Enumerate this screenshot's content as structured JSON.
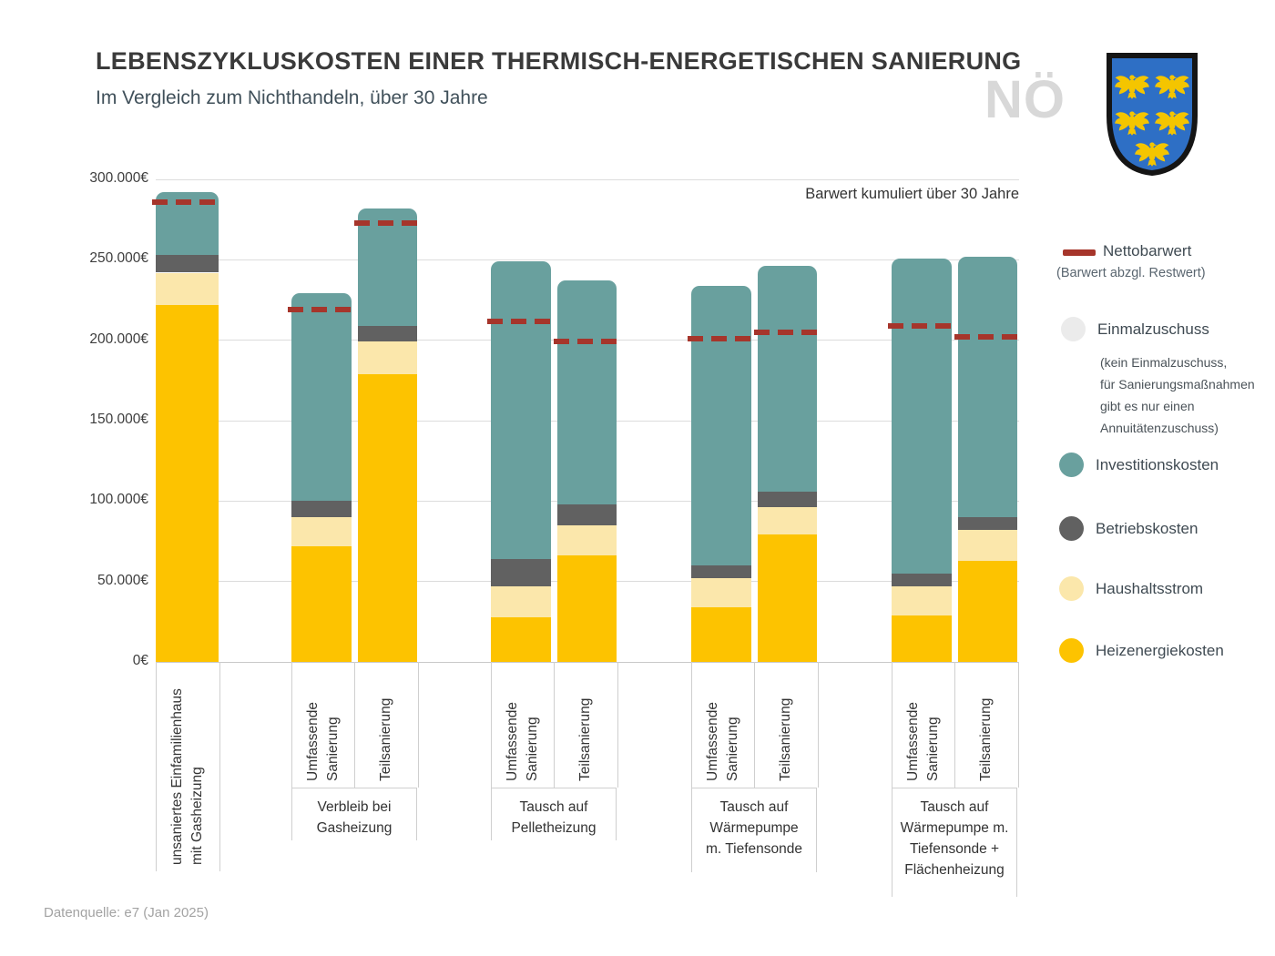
{
  "header": {
    "title": "LEBENSZYKLUSKOSTEN EINER THERMISCH-ENERGETISCHEN SANIERUNG",
    "subtitle": "Im Vergleich zum Nichthandeln, über 30 Jahre",
    "watermark": "NÖ"
  },
  "annotation": "Barwert kumuliert über 30 Jahre",
  "footer": {
    "source": "Datenquelle: e7 (Jan 2025)"
  },
  "colors": {
    "investitionskosten": "#69a09e",
    "betriebskosten": "#616161",
    "haushaltsstrom": "#fbe7ab",
    "heizenergiekosten": "#fdc300",
    "nettobarwert": "#a6352b",
    "einmalzuschuss": "#ebebeb",
    "gridline": "#dcdcdc",
    "shield_blue": "#2e6fc5",
    "eagle_gold": "#f4c500"
  },
  "legend": {
    "nettobarwert": {
      "label": "Nettobarwert",
      "sub": "(Barwert abzgl. Restwert)"
    },
    "einmalzuschuss": {
      "label": "Einmalzuschuss",
      "note": "(kein Einmalzuschuss,\nfür Sanierungsmaßnahmen\ngibt es nur einen\nAnnuitätenzuschuss)"
    },
    "series": [
      {
        "key": "investitionskosten",
        "label": "Investitionskosten"
      },
      {
        "key": "betriebskosten",
        "label": "Betriebskosten"
      },
      {
        "key": "haushaltsstrom",
        "label": "Haushaltsstrom"
      },
      {
        "key": "heizenergiekosten",
        "label": "Heizenergiekosten"
      }
    ]
  },
  "y_axis": {
    "unit": "€",
    "max": 300000,
    "ticks": [
      {
        "value": 0,
        "label": "0€"
      },
      {
        "value": 50000,
        "label": "50.000€"
      },
      {
        "value": 100000,
        "label": "100.000€"
      },
      {
        "value": 150000,
        "label": "150.000€"
      },
      {
        "value": 200000,
        "label": "200.000€"
      },
      {
        "value": 250000,
        "label": "250.000€"
      },
      {
        "value": 300000,
        "label": "300.000€"
      }
    ]
  },
  "chart_data": {
    "type": "bar",
    "subtype": "stacked",
    "unit": "EUR, Barwert kumuliert über 30 Jahre",
    "stack_order": [
      "heizenergiekosten",
      "haushaltsstrom",
      "betriebskosten",
      "investitionskosten"
    ],
    "groups": [
      {
        "group_label": "",
        "bars": [
          {
            "label": "unsaniertes Einfamilienhaus\nmit Gasheizung",
            "values": {
              "heizenergiekosten": 222000,
              "haushaltsstrom": 20000,
              "betriebskosten": 11000,
              "investitionskosten": 39000
            },
            "nettobarwert": 286000
          }
        ]
      },
      {
        "group_label": "Verbleib bei\nGasheizung",
        "bars": [
          {
            "label": "Umfassende\nSanierung",
            "values": {
              "heizenergiekosten": 72000,
              "haushaltsstrom": 18000,
              "betriebskosten": 10000,
              "investitionskosten": 129000
            },
            "nettobarwert": 219000
          },
          {
            "label": "Teilsanierung",
            "values": {
              "heizenergiekosten": 179000,
              "haushaltsstrom": 20000,
              "betriebskosten": 10000,
              "investitionskosten": 73000
            },
            "nettobarwert": 273000
          }
        ]
      },
      {
        "group_label": "Tausch auf\nPelletheizung",
        "bars": [
          {
            "label": "Umfassende\nSanierung",
            "values": {
              "heizenergiekosten": 28000,
              "haushaltsstrom": 19000,
              "betriebskosten": 17000,
              "investitionskosten": 185000
            },
            "nettobarwert": 212000
          },
          {
            "label": "Teilsanierung",
            "values": {
              "heizenergiekosten": 66000,
              "haushaltsstrom": 19000,
              "betriebskosten": 13000,
              "investitionskosten": 139000
            },
            "nettobarwert": 199000
          }
        ]
      },
      {
        "group_label": "Tausch auf\nWärmepumpe\nm. Tiefensonde",
        "bars": [
          {
            "label": "Umfassende\nSanierung",
            "values": {
              "heizenergiekosten": 34000,
              "haushaltsstrom": 18000,
              "betriebskosten": 8000,
              "investitionskosten": 174000
            },
            "nettobarwert": 201000
          },
          {
            "label": "Teilsanierung",
            "values": {
              "heizenergiekosten": 79000,
              "haushaltsstrom": 17000,
              "betriebskosten": 10000,
              "investitionskosten": 140000
            },
            "nettobarwert": 205000
          }
        ]
      },
      {
        "group_label": "Tausch auf\nWärmepumpe m.\nTiefensonde +\nFlächenheizung",
        "bars": [
          {
            "label": "Umfassende\nSanierung",
            "values": {
              "heizenergiekosten": 29000,
              "haushaltsstrom": 18000,
              "betriebskosten": 8000,
              "investitionskosten": 196000
            },
            "nettobarwert": 209000
          },
          {
            "label": "Teilsanierung",
            "values": {
              "heizenergiekosten": 63000,
              "haushaltsstrom": 19000,
              "betriebskosten": 8000,
              "investitionskosten": 162000
            },
            "nettobarwert": 202000
          }
        ]
      }
    ]
  }
}
